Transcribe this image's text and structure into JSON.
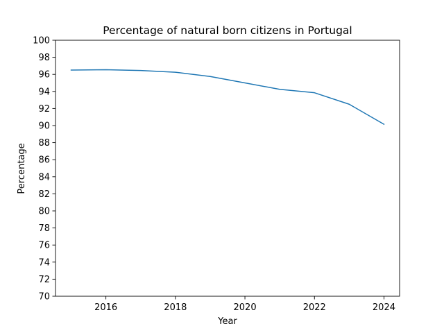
{
  "chart_data": {
    "type": "line",
    "title": "Percentage of natural born citizens in Portugal",
    "xlabel": "Year",
    "ylabel": "Percentage",
    "xlim": [
      2014.55,
      2024.45
    ],
    "ylim": [
      70,
      100
    ],
    "xticks": [
      2016,
      2018,
      2020,
      2022,
      2024
    ],
    "yticks": [
      70,
      72,
      74,
      76,
      78,
      80,
      82,
      84,
      86,
      88,
      90,
      92,
      94,
      96,
      98,
      100
    ],
    "grid": false,
    "legend": "none",
    "series": [
      {
        "color": "#1f77b4",
        "x": [
          2015,
          2016,
          2017,
          2018,
          2019,
          2020,
          2021,
          2022,
          2023,
          2024
        ],
        "y": [
          96.5,
          96.55,
          96.45,
          96.25,
          95.75,
          95.0,
          94.25,
          93.85,
          92.5,
          90.15
        ]
      }
    ]
  }
}
